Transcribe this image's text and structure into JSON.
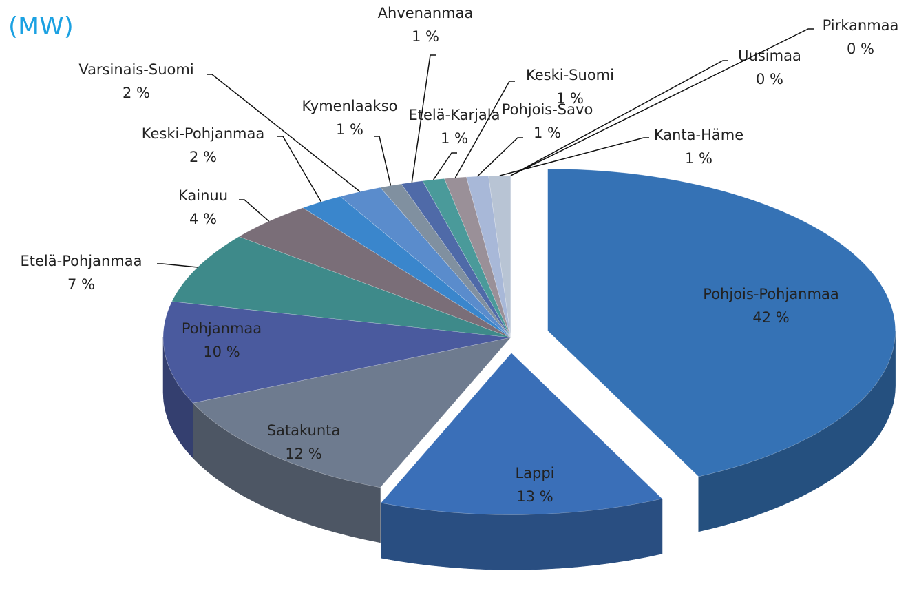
{
  "chart_data": {
    "type": "pie",
    "title": "(MW)",
    "categories": [
      "Pohjois-Pohjanmaa",
      "Lappi",
      "Satakunta",
      "Pohjanmaa",
      "Etelä-Pohjanmaa",
      "Kainuu",
      "Keski-Pohjanmaa",
      "Varsinais-Suomi",
      "Kymenlaakso",
      "Ahvenanmaa",
      "Etelä-Karjala",
      "Keski-Suomi",
      "Pohjois-Savo",
      "Kanta-Häme",
      "Uusimaa",
      "Pirkanmaa"
    ],
    "values": [
      42,
      13,
      12,
      10,
      7,
      4,
      2,
      2,
      1,
      1,
      1,
      1,
      1,
      1,
      0,
      0
    ],
    "value_labels": [
      "42 %",
      "13 %",
      "12 %",
      "10 %",
      "7 %",
      "4 %",
      "2 %",
      "2 %",
      "1 %",
      "1 %",
      "1 %",
      "1 %",
      "1 %",
      "1 %",
      "0 %",
      "0 %"
    ],
    "colors": [
      "#3572b5",
      "#3a6fb8",
      "#6e7b8f",
      "#4a5a9e",
      "#3e8a8a",
      "#7a6e78",
      "#3a86cc",
      "#5a8ccc",
      "#8090a0",
      "#4f6aa8",
      "#4a9a9a",
      "#9a9098",
      "#a8b8d8",
      "#b8c4d4",
      "#c0c8d8",
      "#c8d0dc"
    ]
  }
}
